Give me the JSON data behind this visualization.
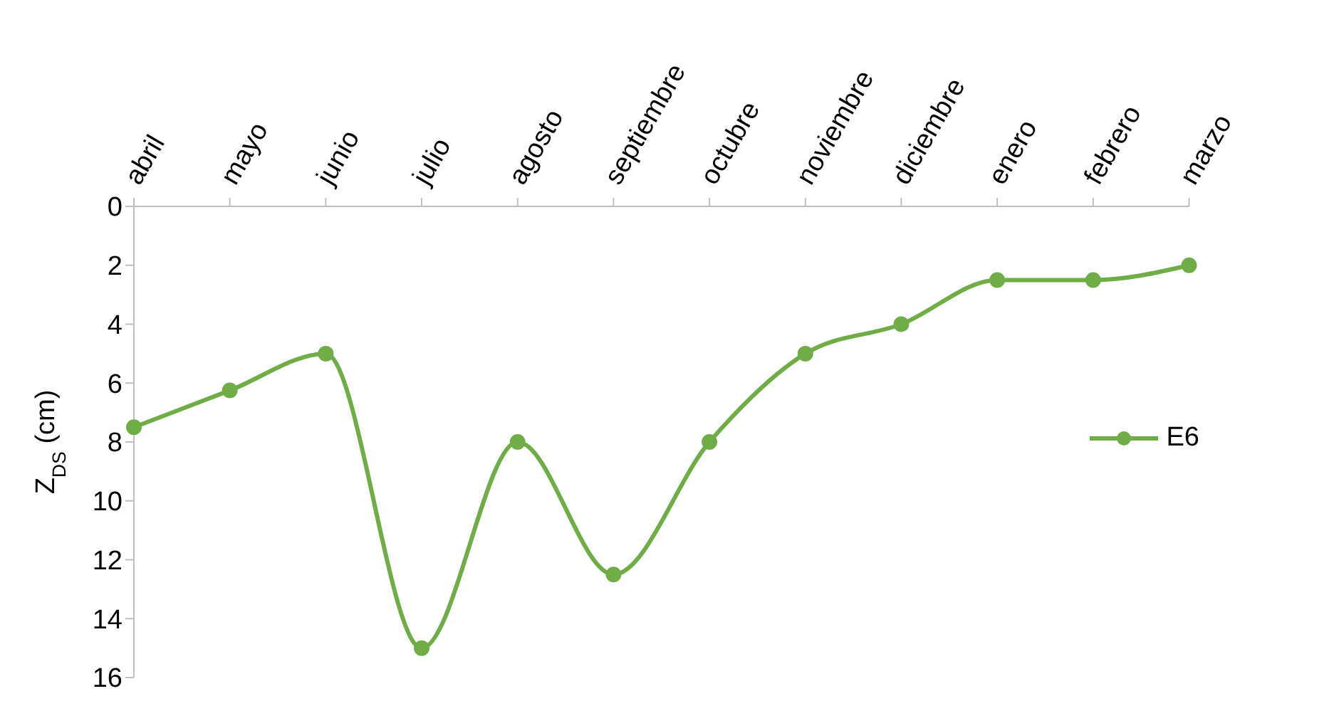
{
  "chart_data": {
    "type": "line",
    "ylabel": "Z$_{DS}$ (cm)",
    "categories": [
      "abril",
      "mayo",
      "junio",
      "julio",
      "agosto",
      "septiembre",
      "octubre",
      "noviembre",
      "diciembre",
      "enero",
      "febrero",
      "marzo"
    ],
    "series": [
      {
        "name": "E6",
        "color": "#70ad47",
        "values": [
          7.5,
          6.25,
          5,
          15,
          8,
          12.5,
          8,
          5,
          4,
          2.5,
          2.5,
          2
        ]
      }
    ],
    "ylim": [
      16,
      0
    ],
    "yticks": [
      0,
      2,
      4,
      6,
      8,
      10,
      12,
      14,
      16
    ],
    "grid": false,
    "legend": "right",
    "marker": "circle",
    "line_style": "solid"
  }
}
